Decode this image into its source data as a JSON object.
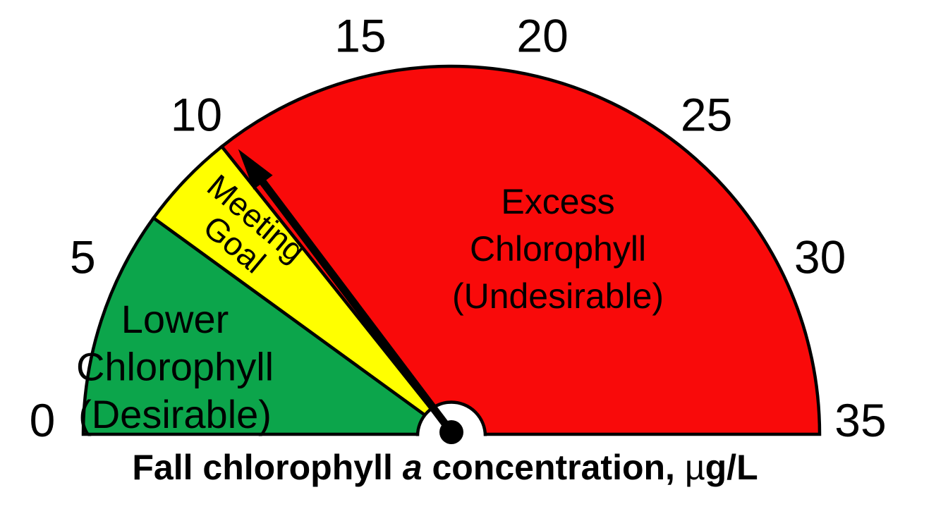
{
  "chart_data": {
    "type": "gauge",
    "title": "Fall chlorophyll a concentration, µg/L",
    "title_parts": {
      "before_italic": "Fall chlorophyll ",
      "italic_word": "a",
      "after_italic": " concentration, ",
      "mu": "µ",
      "unit": "g/L"
    },
    "axis": {
      "min": 0,
      "max": 35,
      "tick_interval": 5,
      "tick_labels": [
        "0",
        "5",
        "10",
        "15",
        "20",
        "25",
        "30",
        "35"
      ]
    },
    "zones": [
      {
        "name": "lower-chlorophyll-zone",
        "label": "Lower Chlorophyll (Desirable)",
        "label_lines": [
          "Lower",
          "Chlorophyll",
          "(Desirable)"
        ],
        "from": 0,
        "to": 7,
        "color": "#0CA54B"
      },
      {
        "name": "meeting-goal-zone",
        "label": "Meeting Goal",
        "label_lines": [
          "Meeting",
          "Goal"
        ],
        "from": 7,
        "to": 10,
        "color": "#FFFF00"
      },
      {
        "name": "excess-chlorophyll-zone",
        "label": "Excess Chlorophyll (Undesirable)",
        "label_lines": [
          "Excess",
          "Chlorophyll",
          "(Undesirable)"
        ],
        "from": 10,
        "to": 35,
        "color": "#F90A0A"
      }
    ],
    "needle": {
      "value": 10.35,
      "color": "#000000"
    },
    "colors": {
      "outline": "#000000",
      "hub_fill": "#FFFFFF",
      "background": "#FFFFFF"
    }
  }
}
